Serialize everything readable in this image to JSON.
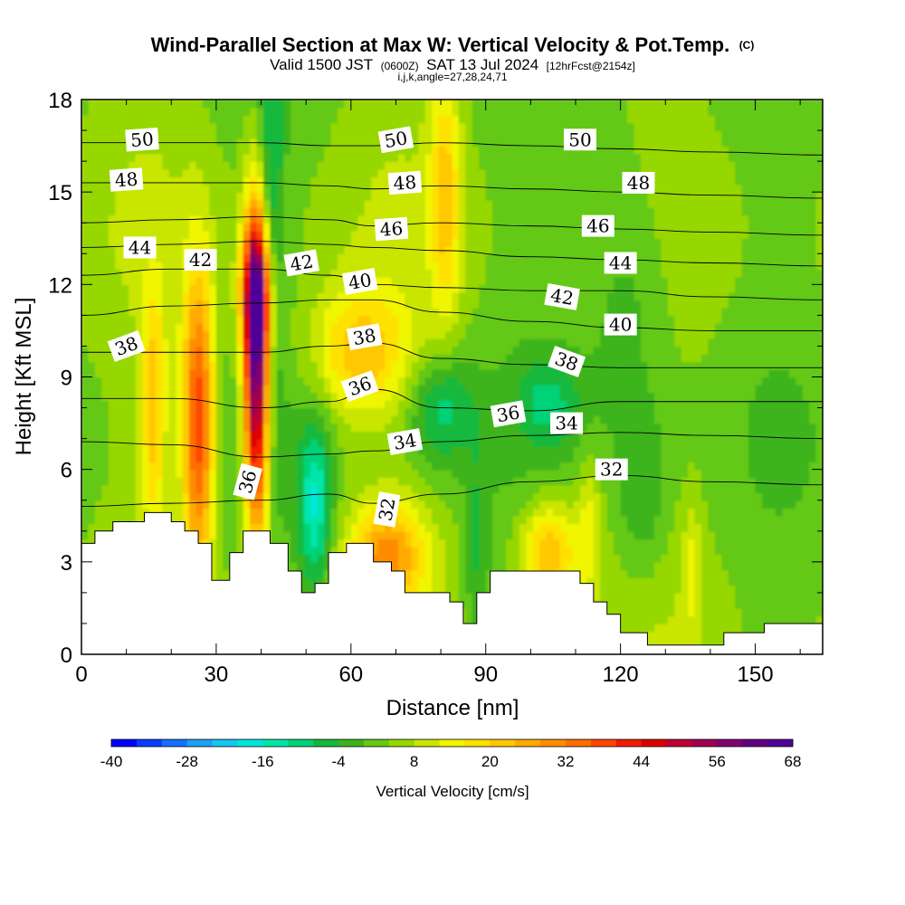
{
  "chart_data": {
    "type": "heatmap",
    "title": "Wind-Parallel Section at Max W: Vertical Velocity & Pot.Temp.",
    "title_mark": "(C)",
    "subtitle": {
      "valid_prefix": "Valid 1500 JST",
      "utc": "(0600Z)",
      "date": "SAT 13 Jul 2024",
      "forecast": "[12hrFcst@2154z]"
    },
    "indices": "i,j,k,angle=27,28,24,71",
    "xlabel": "Distance [nm]",
    "ylabel": "Height [Kft MSL]",
    "xlim": [
      0,
      165
    ],
    "ylim": [
      0,
      18
    ],
    "x_ticks": [
      "0",
      "30",
      "60",
      "90",
      "120",
      "150"
    ],
    "x_tick_values": [
      0,
      30,
      60,
      90,
      120,
      150
    ],
    "y_ticks": [
      "0",
      "3",
      "6",
      "9",
      "12",
      "15",
      "18"
    ],
    "y_tick_values": [
      0,
      3,
      6,
      9,
      12,
      15,
      18
    ],
    "colorbar": {
      "label": "Vertical Velocity [cm/s]",
      "min": -40,
      "max": 68,
      "step": 4,
      "tick_labels": [
        "-40",
        "-28",
        "-16",
        "-4",
        "8",
        "20",
        "32",
        "44",
        "56",
        "68"
      ],
      "tick_values": [
        -40,
        -28,
        -16,
        -4,
        8,
        20,
        32,
        44,
        56,
        68
      ],
      "colors": [
        "#0000ff",
        "#0a3cff",
        "#1470ff",
        "#1ea0f5",
        "#16c8f0",
        "#00e6dc",
        "#00e6aa",
        "#00d278",
        "#14b93c",
        "#3cb41e",
        "#64c814",
        "#96d700",
        "#c8e600",
        "#f0f500",
        "#ffe100",
        "#ffc800",
        "#ffaa00",
        "#ff8c00",
        "#ff6e00",
        "#ff4600",
        "#f01e00",
        "#dc0000",
        "#be0032",
        "#a00050",
        "#82006e",
        "#640082",
        "#500096"
      ]
    },
    "updraft_cells": [
      {
        "x": 26,
        "z": 7.5,
        "sx": 2.5,
        "sz": 3.5,
        "w": 36
      },
      {
        "x": 39,
        "z": 9.2,
        "sx": 2.0,
        "sz": 3.8,
        "w": 60
      },
      {
        "x": 39,
        "z": 11.8,
        "sx": 2.5,
        "sz": 1.5,
        "w": 30
      },
      {
        "x": 16,
        "z": 8.0,
        "sx": 2.0,
        "sz": 2.8,
        "w": 18
      },
      {
        "x": 62,
        "z": 9.8,
        "sx": 8.0,
        "sz": 1.5,
        "w": 18
      },
      {
        "x": 68,
        "z": 3.2,
        "sx": 6.0,
        "sz": 1.2,
        "w": 24
      },
      {
        "x": 81,
        "z": 15.0,
        "sx": 2.5,
        "sz": 3.0,
        "w": 16
      },
      {
        "x": 104,
        "z": 3.3,
        "sx": 4.5,
        "sz": 1.2,
        "w": 22
      },
      {
        "x": 113,
        "z": 4.2,
        "sx": 2.0,
        "sz": 1.5,
        "w": 10
      },
      {
        "x": 136,
        "z": 2.8,
        "sx": 1.5,
        "sz": 1.5,
        "w": 8
      }
    ],
    "downdraft_cells": [
      {
        "x": 42,
        "z": 14.0,
        "sx": 2.0,
        "sz": 4.5,
        "w": -14
      },
      {
        "x": 52,
        "z": 4.8,
        "sx": 2.5,
        "sz": 2.0,
        "w": -18
      },
      {
        "x": 80,
        "z": 8.0,
        "sx": 5.0,
        "sz": 1.3,
        "w": -14
      },
      {
        "x": 104,
        "z": 8.2,
        "sx": 5.0,
        "sz": 1.0,
        "w": -10
      },
      {
        "x": 125,
        "z": 5.0,
        "sx": 4.0,
        "sz": 2.0,
        "w": -8
      },
      {
        "x": 122,
        "z": 12.0,
        "sx": 7.0,
        "sz": 3.5,
        "w": -8
      },
      {
        "x": 88,
        "z": 3.0,
        "sx": 2.0,
        "sz": 2.5,
        "w": -8
      }
    ],
    "terrain": [
      {
        "x": 0,
        "h": 3.6
      },
      {
        "x": 3,
        "h": 4.0
      },
      {
        "x": 7,
        "h": 4.3
      },
      {
        "x": 14,
        "h": 4.6
      },
      {
        "x": 20,
        "h": 4.3
      },
      {
        "x": 23,
        "h": 4.0
      },
      {
        "x": 26,
        "h": 3.6
      },
      {
        "x": 29,
        "h": 2.4
      },
      {
        "x": 33,
        "h": 3.3
      },
      {
        "x": 36,
        "h": 4.0
      },
      {
        "x": 42,
        "h": 3.6
      },
      {
        "x": 46,
        "h": 2.7
      },
      {
        "x": 49,
        "h": 2.0
      },
      {
        "x": 52,
        "h": 2.3
      },
      {
        "x": 55,
        "h": 3.3
      },
      {
        "x": 59,
        "h": 3.6
      },
      {
        "x": 65,
        "h": 3.0
      },
      {
        "x": 69,
        "h": 2.7
      },
      {
        "x": 72,
        "h": 2.0
      },
      {
        "x": 82,
        "h": 1.7
      },
      {
        "x": 85,
        "h": 1.0
      },
      {
        "x": 88,
        "h": 2.0
      },
      {
        "x": 91,
        "h": 2.7
      },
      {
        "x": 111,
        "h": 2.3
      },
      {
        "x": 114,
        "h": 1.7
      },
      {
        "x": 117,
        "h": 1.3
      },
      {
        "x": 120,
        "h": 0.7
      },
      {
        "x": 126,
        "h": 0.3
      },
      {
        "x": 143,
        "h": 0.7
      },
      {
        "x": 152,
        "h": 1.0
      },
      {
        "x": 165,
        "h": 1.0
      }
    ],
    "theta_contours": [
      {
        "theta": 32,
        "x": [
          0,
          20,
          40,
          55,
          65,
          80,
          100,
          120,
          140,
          165
        ],
        "z": [
          4.8,
          4.9,
          5.0,
          5.2,
          4.9,
          5.2,
          5.6,
          5.8,
          5.6,
          5.5
        ]
      },
      {
        "theta": 34,
        "x": [
          0,
          20,
          40,
          55,
          65,
          80,
          100,
          120,
          140,
          165
        ],
        "z": [
          6.9,
          6.8,
          6.4,
          6.5,
          6.6,
          6.9,
          7.1,
          7.2,
          7.1,
          7.0
        ]
      },
      {
        "theta": 36,
        "x": [
          0,
          20,
          40,
          55,
          65,
          80,
          100,
          120,
          140,
          165
        ],
        "z": [
          8.3,
          8.3,
          8.0,
          8.2,
          8.6,
          8.0,
          7.9,
          8.2,
          8.2,
          8.2
        ]
      },
      {
        "theta": 38,
        "x": [
          0,
          20,
          40,
          55,
          65,
          80,
          100,
          120,
          140,
          165
        ],
        "z": [
          9.8,
          9.8,
          9.8,
          10.0,
          10.1,
          9.6,
          9.4,
          9.3,
          9.3,
          9.3
        ]
      },
      {
        "theta": 40,
        "x": [
          0,
          20,
          40,
          55,
          65,
          80,
          100,
          120,
          140,
          165
        ],
        "z": [
          11.0,
          11.3,
          11.4,
          11.5,
          11.5,
          11.1,
          10.8,
          10.6,
          10.5,
          10.5
        ]
      },
      {
        "theta": 42,
        "x": [
          0,
          20,
          40,
          55,
          65,
          80,
          100,
          120,
          140,
          165
        ],
        "z": [
          12.3,
          12.5,
          12.5,
          12.3,
          12.0,
          11.9,
          11.8,
          11.8,
          11.6,
          11.5
        ]
      },
      {
        "theta": 44,
        "x": [
          0,
          20,
          40,
          55,
          65,
          80,
          100,
          120,
          140,
          165
        ],
        "z": [
          13.2,
          13.3,
          13.4,
          13.3,
          13.2,
          13.1,
          12.9,
          12.8,
          12.7,
          12.6
        ]
      },
      {
        "theta": 46,
        "x": [
          0,
          20,
          40,
          55,
          65,
          80,
          100,
          120,
          140,
          165
        ],
        "z": [
          14.0,
          14.1,
          14.2,
          14.1,
          13.9,
          14.0,
          13.9,
          13.8,
          13.7,
          13.6
        ]
      },
      {
        "theta": 48,
        "x": [
          0,
          20,
          40,
          55,
          65,
          80,
          100,
          120,
          140,
          165
        ],
        "z": [
          15.3,
          15.3,
          15.3,
          15.2,
          15.1,
          15.2,
          15.1,
          15.0,
          14.9,
          14.8
        ]
      },
      {
        "theta": 50,
        "x": [
          0,
          20,
          40,
          55,
          65,
          80,
          100,
          120,
          140,
          165
        ],
        "z": [
          16.6,
          16.6,
          16.6,
          16.5,
          16.5,
          16.6,
          16.5,
          16.4,
          16.3,
          16.2
        ]
      }
    ],
    "contour_labels": [
      {
        "text": "50",
        "x": 13.5,
        "z": 16.7,
        "angle": -4
      },
      {
        "text": "48",
        "x": 10,
        "z": 15.4,
        "angle": -4
      },
      {
        "text": "44",
        "x": 13,
        "z": 13.2,
        "angle": 0
      },
      {
        "text": "42",
        "x": 26.5,
        "z": 12.8,
        "angle": 0
      },
      {
        "text": "38",
        "x": 10,
        "z": 10.0,
        "angle": -20
      },
      {
        "text": "50",
        "x": 70,
        "z": 16.7,
        "angle": -10
      },
      {
        "text": "48",
        "x": 72,
        "z": 15.3,
        "angle": -4
      },
      {
        "text": "46",
        "x": 69,
        "z": 13.8,
        "angle": -4
      },
      {
        "text": "42",
        "x": 49,
        "z": 12.7,
        "angle": -10
      },
      {
        "text": "40",
        "x": 62,
        "z": 12.1,
        "angle": -10
      },
      {
        "text": "38",
        "x": 63,
        "z": 10.3,
        "angle": -10
      },
      {
        "text": "36",
        "x": 62,
        "z": 8.7,
        "angle": -20
      },
      {
        "text": "34",
        "x": 72,
        "z": 6.9,
        "angle": -10
      },
      {
        "text": "32",
        "x": 68,
        "z": 4.7,
        "angle": -80
      },
      {
        "text": "36",
        "x": 37,
        "z": 5.6,
        "angle": -75
      },
      {
        "text": "36",
        "x": 95,
        "z": 7.8,
        "angle": -10
      },
      {
        "text": "34",
        "x": 108,
        "z": 7.5,
        "angle": 0
      },
      {
        "text": "32",
        "x": 118,
        "z": 6.0,
        "angle": 0
      },
      {
        "text": "38",
        "x": 108,
        "z": 9.5,
        "angle": 20
      },
      {
        "text": "42",
        "x": 107,
        "z": 11.6,
        "angle": 10
      },
      {
        "text": "40",
        "x": 120,
        "z": 10.7,
        "angle": 0
      },
      {
        "text": "44",
        "x": 120,
        "z": 12.7,
        "angle": 0
      },
      {
        "text": "46",
        "x": 115,
        "z": 13.9,
        "angle": 0
      },
      {
        "text": "48",
        "x": 124,
        "z": 15.3,
        "angle": 0
      },
      {
        "text": "50",
        "x": 111,
        "z": 16.7,
        "angle": 0
      }
    ]
  }
}
